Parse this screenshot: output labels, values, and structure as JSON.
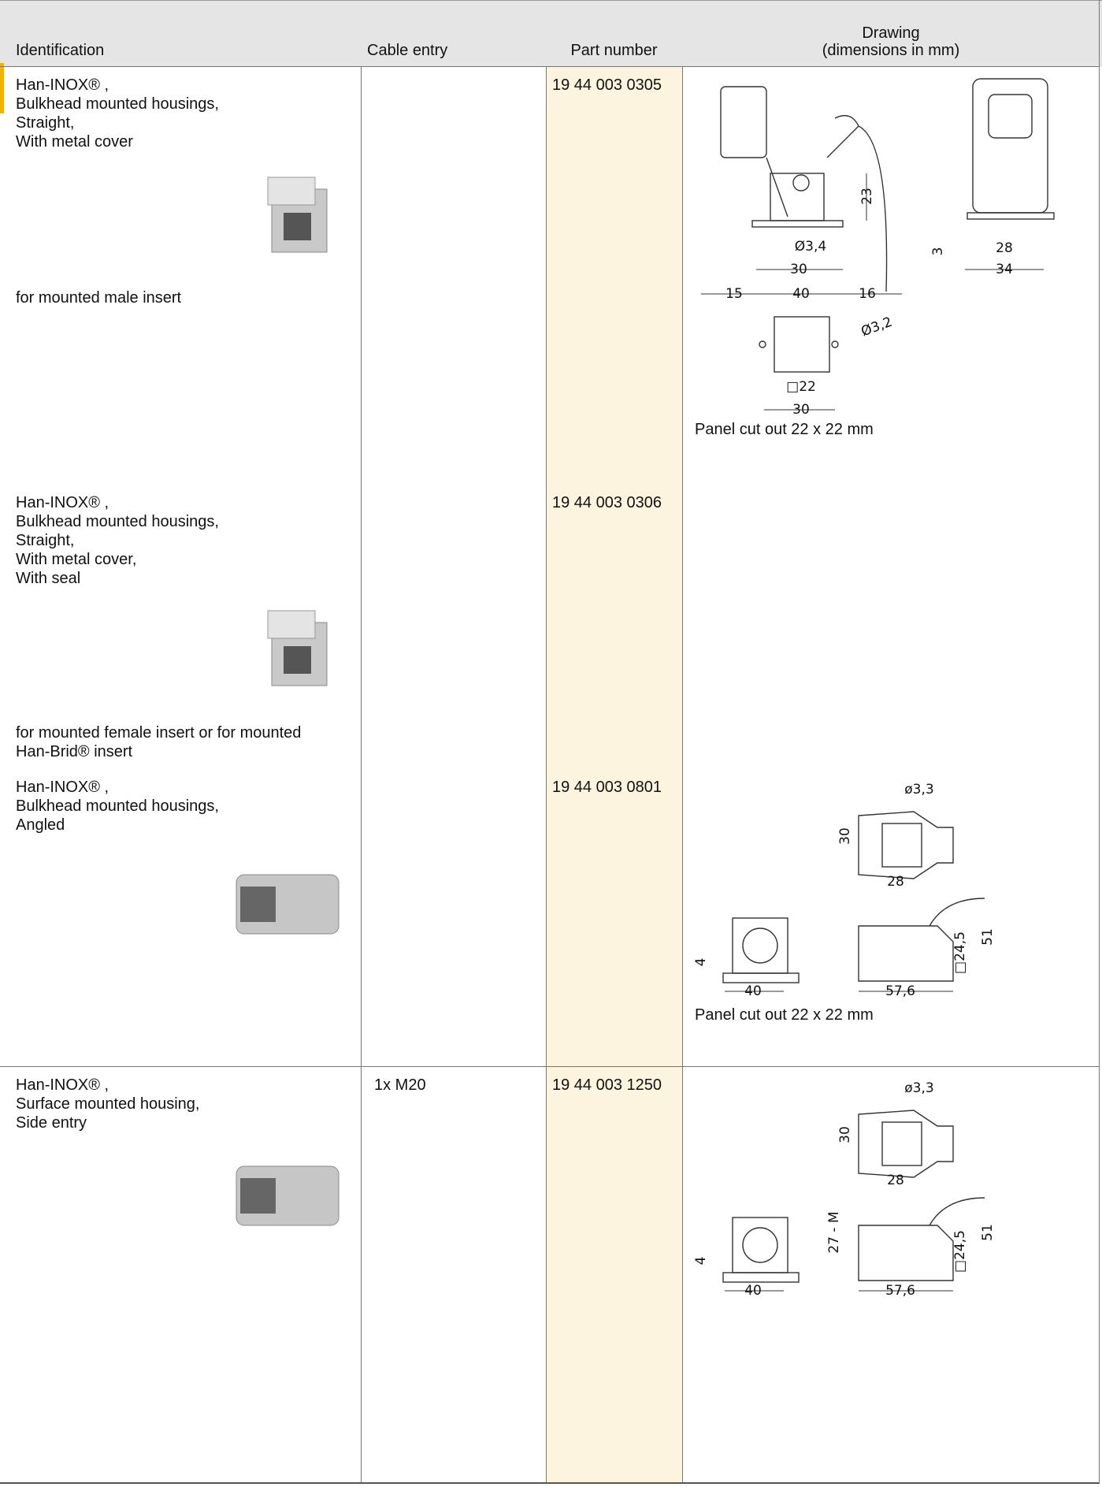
{
  "header": {
    "columns": [
      "Identification",
      "Cable entry",
      "Part number",
      "Drawing",
      "(dimensions in mm)"
    ]
  },
  "rows": [
    {
      "identification": [
        "Han-INOX® ,",
        "Bulkhead mounted housings,",
        "Straight,",
        "With metal cover"
      ],
      "note": [
        "for mounted male insert"
      ],
      "part_number": "19 44 003 0305",
      "drawing": {
        "labels": [
          "23",
          "Ø3,4",
          "30",
          "3",
          "28",
          "34",
          "15",
          "40",
          "16",
          "Ø3,2",
          "□22",
          "30"
        ],
        "caption": "Panel cut out 22 x 22 mm"
      }
    },
    {
      "identification": [
        "Han-INOX® ,",
        "Bulkhead mounted housings,",
        "Straight,",
        "With metal cover,",
        "With seal"
      ],
      "note": [
        "for mounted female insert or for mounted",
        "Han-Brid® insert"
      ],
      "part_number": "19 44 003 0306"
    },
    {
      "identification": [
        "Han-INOX® ,",
        "Bulkhead mounted housings,",
        "Angled"
      ],
      "part_number": "19 44 003 0801",
      "drawing": {
        "labels": [
          "ø3,3",
          "30",
          "28",
          "4",
          "40",
          "51",
          "□24,5",
          "57,6"
        ],
        "caption": "Panel cut out 22 x 22 mm"
      }
    },
    {
      "identification": [
        "Han-INOX® ,",
        "Surface mounted housing,",
        "Side entry"
      ],
      "cable_entry": "1x M20",
      "part_number": "19 44 003 1250",
      "drawing": {
        "labels": [
          "ø3,3",
          "30",
          "28",
          "27 - M",
          "4",
          "40",
          "51",
          "□24,5",
          "57,6"
        ]
      }
    }
  ]
}
